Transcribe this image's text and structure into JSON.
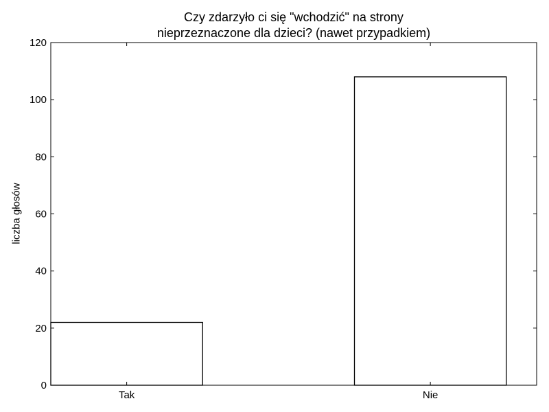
{
  "chart_data": {
    "type": "bar",
    "title": "Czy zdarzyło ci się \"wchodzić\" na strony nieprzeznaczone dla dzieci? (nawet przypadkiem)",
    "title_lines": [
      "Czy zdarzyło ci się \"wchodzić\" na strony",
      "nieprzeznaczone dla dzieci? (nawet przypadkiem)"
    ],
    "xlabel": "",
    "ylabel": "liczba głosów",
    "categories": [
      "Tak",
      "Nie"
    ],
    "values": [
      22,
      108
    ],
    "ylim": [
      0,
      120
    ],
    "yticks": [
      0,
      20,
      40,
      60,
      80,
      100,
      120
    ],
    "grid": false,
    "bar_fill": "#ffffff",
    "bar_edge": "#000000"
  }
}
